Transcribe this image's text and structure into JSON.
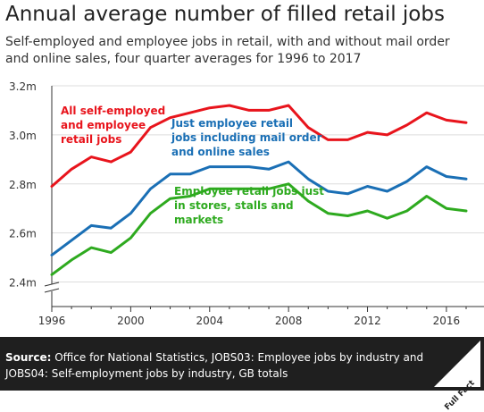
{
  "title": "Annual average number of filled retail jobs",
  "subtitle": "Self-employed and employee jobs in retail, with and without mail order and online sales, four quarter averages for 1996 to 2017",
  "footer": {
    "source_label": "Source:",
    "source_text": "Office for National Statistics, JOBS03: Employee jobs by industry and JOBS04: Self-employment jobs by industry, GB totals",
    "logo_text": "Full Fact"
  },
  "colors": {
    "self_employed": "#e8141c",
    "employee_online": "#1a6fb5",
    "employee_stores": "#2eaa1f",
    "grid": "#dddddd",
    "axis": "#333333"
  },
  "chart_data": {
    "type": "line",
    "title": "",
    "xlabel": "",
    "ylabel": "",
    "x": [
      1996,
      1997,
      1998,
      1999,
      2000,
      2001,
      2002,
      2003,
      2004,
      2005,
      2006,
      2007,
      2008,
      2009,
      2010,
      2011,
      2012,
      2013,
      2014,
      2015,
      2016,
      2017
    ],
    "xticks": [
      1996,
      2000,
      2004,
      2008,
      2012,
      2016
    ],
    "xtick_labels": [
      "1996",
      "2000",
      "2004",
      "2008",
      "2012",
      "2016"
    ],
    "ylim": [
      2.3,
      3.2
    ],
    "yticks": [
      2.4,
      2.6,
      2.8,
      3.0,
      3.2
    ],
    "ytick_labels": [
      "2.4m",
      "2.6m",
      "2.8m",
      "3.0m",
      "3.2m"
    ],
    "y_axis_break": true,
    "grid": true,
    "series": [
      {
        "key": "self_employed",
        "name": "All self-employed and employee retail jobs",
        "label_lines": [
          "All self-employed",
          "and employee",
          "retail jobs"
        ],
        "values": [
          2.79,
          2.86,
          2.91,
          2.89,
          2.93,
          3.03,
          3.07,
          3.09,
          3.11,
          3.12,
          3.1,
          3.1,
          3.12,
          3.03,
          2.98,
          2.98,
          3.01,
          3.0,
          3.04,
          3.09,
          3.06,
          3.05
        ]
      },
      {
        "key": "employee_online",
        "name": "Just employee retail jobs including mail order and online sales",
        "label_lines": [
          "Just employee retail",
          "jobs including mail order",
          "and online sales"
        ],
        "values": [
          2.51,
          2.57,
          2.63,
          2.62,
          2.68,
          2.78,
          2.84,
          2.84,
          2.87,
          2.87,
          2.87,
          2.86,
          2.89,
          2.82,
          2.77,
          2.76,
          2.79,
          2.77,
          2.81,
          2.87,
          2.83,
          2.82
        ]
      },
      {
        "key": "employee_stores",
        "name": "Employee retail jobs just in stores, stalls and markets",
        "label_lines": [
          "Employee retail jobs just",
          "in stores, stalls and",
          "markets"
        ],
        "values": [
          2.43,
          2.49,
          2.54,
          2.52,
          2.58,
          2.68,
          2.74,
          2.75,
          2.78,
          2.78,
          2.78,
          2.78,
          2.8,
          2.73,
          2.68,
          2.67,
          2.69,
          2.66,
          2.69,
          2.75,
          2.7,
          2.69
        ]
      }
    ]
  }
}
